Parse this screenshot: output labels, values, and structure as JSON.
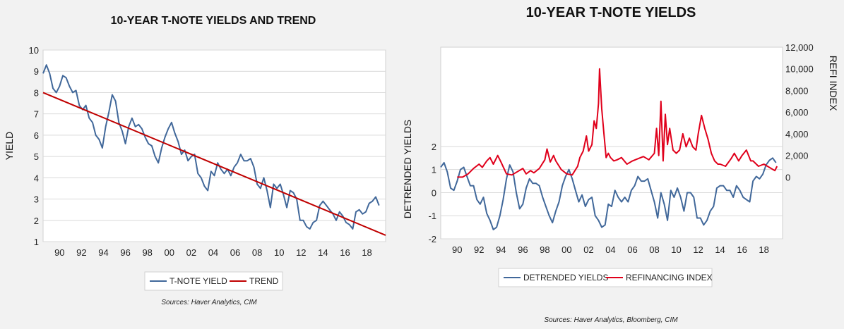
{
  "colors": {
    "tnote": "#41689a",
    "trend": "#c00000",
    "detrended": "#41689a",
    "refi": "#e0001b",
    "grid": "#d9d9d9",
    "plot_bg": "#ffffff",
    "page_bg": "#f2f2f2"
  },
  "chart_data": [
    {
      "type": "line",
      "title": "10-YEAR T-NOTE YIELDS AND TREND",
      "xlabel": "",
      "ylabel": "YIELD",
      "xlim": [
        1988.5,
        2019.7
      ],
      "ylim": [
        1,
        10
      ],
      "x_tick_labels": [
        "90",
        "92",
        "94",
        "96",
        "98",
        "00",
        "02",
        "04",
        "06",
        "08",
        "10",
        "12",
        "14",
        "16",
        "18"
      ],
      "y_tick_labels": [
        "1",
        "2",
        "3",
        "4",
        "5",
        "6",
        "7",
        "8",
        "9",
        "10"
      ],
      "legend": [
        "T-NOTE YIELD",
        "TREND"
      ],
      "legend_position": "bottom",
      "source": "Sources:  Haver Analytics, CIM",
      "series": [
        {
          "name": "T-NOTE YIELD",
          "x": [
            1988.5,
            1988.8,
            1989.1,
            1989.4,
            1989.7,
            1990.0,
            1990.3,
            1990.6,
            1990.9,
            1991.2,
            1991.5,
            1991.8,
            1992.1,
            1992.4,
            1992.7,
            1993.0,
            1993.3,
            1993.6,
            1993.9,
            1994.2,
            1994.5,
            1994.8,
            1995.1,
            1995.4,
            1995.7,
            1996.0,
            1996.3,
            1996.6,
            1996.9,
            1997.2,
            1997.5,
            1997.8,
            1998.1,
            1998.4,
            1998.7,
            1999.0,
            1999.3,
            1999.6,
            1999.9,
            2000.2,
            2000.5,
            2000.8,
            2001.1,
            2001.4,
            2001.7,
            2002.0,
            2002.3,
            2002.6,
            2002.9,
            2003.2,
            2003.5,
            2003.8,
            2004.1,
            2004.4,
            2004.7,
            2005.0,
            2005.3,
            2005.6,
            2005.9,
            2006.2,
            2006.5,
            2006.8,
            2007.1,
            2007.4,
            2007.7,
            2008.0,
            2008.3,
            2008.6,
            2008.9,
            2009.2,
            2009.5,
            2009.8,
            2010.1,
            2010.4,
            2010.7,
            2011.0,
            2011.3,
            2011.6,
            2011.9,
            2012.2,
            2012.5,
            2012.8,
            2013.1,
            2013.4,
            2013.7,
            2014.0,
            2014.3,
            2014.6,
            2014.9,
            2015.2,
            2015.5,
            2015.8,
            2016.1,
            2016.4,
            2016.7,
            2017.0,
            2017.3,
            2017.6,
            2017.9,
            2018.2,
            2018.5,
            2018.8,
            2019.1
          ],
          "values": [
            8.9,
            9.3,
            8.9,
            8.2,
            8.0,
            8.3,
            8.8,
            8.7,
            8.3,
            8.0,
            8.1,
            7.4,
            7.2,
            7.4,
            6.8,
            6.6,
            6.0,
            5.8,
            5.4,
            6.4,
            7.1,
            7.9,
            7.6,
            6.6,
            6.2,
            5.6,
            6.4,
            6.8,
            6.4,
            6.5,
            6.3,
            5.9,
            5.6,
            5.5,
            5.0,
            4.7,
            5.4,
            5.9,
            6.3,
            6.6,
            6.1,
            5.7,
            5.1,
            5.3,
            4.8,
            5.0,
            5.1,
            4.2,
            4.0,
            3.6,
            3.4,
            4.3,
            4.1,
            4.7,
            4.4,
            4.2,
            4.4,
            4.1,
            4.5,
            4.7,
            5.1,
            4.8,
            4.8,
            4.9,
            4.5,
            3.7,
            3.5,
            4.0,
            3.4,
            2.6,
            3.7,
            3.5,
            3.7,
            3.2,
            2.6,
            3.4,
            3.3,
            3.0,
            2.0,
            2.0,
            1.7,
            1.6,
            1.9,
            2.0,
            2.7,
            2.9,
            2.7,
            2.5,
            2.3,
            2.0,
            2.4,
            2.2,
            1.9,
            1.8,
            1.6,
            2.4,
            2.5,
            2.3,
            2.4,
            2.8,
            2.9,
            3.1,
            2.7
          ]
        },
        {
          "name": "TREND",
          "x": [
            1988.5,
            2019.7
          ],
          "values": [
            8.0,
            1.3
          ]
        }
      ]
    },
    {
      "type": "line",
      "title": "10-YEAR T-NOTE YIELDS",
      "xlabel": "",
      "ylabel": "DETRENDED YIELDS",
      "y2label": "REFI INDEX",
      "xlim": [
        1988.5,
        2019.7
      ],
      "ylim": [
        -2,
        6.3
      ],
      "y2lim": [
        -5700,
        12000
      ],
      "x_tick_labels": [
        "90",
        "92",
        "94",
        "96",
        "98",
        "00",
        "02",
        "04",
        "06",
        "08",
        "10",
        "12",
        "14",
        "16",
        "18"
      ],
      "y_tick_labels": [
        "-2",
        "-1",
        "0",
        "1",
        "2"
      ],
      "y2_tick_labels": [
        "0",
        "2,000",
        "4,000",
        "6,000",
        "8,000",
        "10,000",
        "12,000"
      ],
      "legend": [
        "DETRENDED YIELDS",
        "REFINANCING INDEX"
      ],
      "legend_position": "bottom",
      "source": "Sources:  Haver Analytics, Bloomberg, CIM",
      "series": [
        {
          "name": "DETRENDED YIELDS",
          "axis": "left",
          "x": [
            1988.5,
            1988.8,
            1989.1,
            1989.4,
            1989.7,
            1990.0,
            1990.3,
            1990.6,
            1990.9,
            1991.2,
            1991.5,
            1991.8,
            1992.1,
            1992.4,
            1992.7,
            1993.0,
            1993.3,
            1993.6,
            1993.9,
            1994.2,
            1994.5,
            1994.8,
            1995.1,
            1995.4,
            1995.7,
            1996.0,
            1996.3,
            1996.6,
            1996.9,
            1997.2,
            1997.5,
            1997.8,
            1998.1,
            1998.4,
            1998.7,
            1999.0,
            1999.3,
            1999.6,
            1999.9,
            2000.2,
            2000.5,
            2000.8,
            2001.1,
            2001.4,
            2001.7,
            2002.0,
            2002.3,
            2002.6,
            2002.9,
            2003.2,
            2003.5,
            2003.8,
            2004.1,
            2004.4,
            2004.7,
            2005.0,
            2005.3,
            2005.6,
            2005.9,
            2006.2,
            2006.5,
            2006.8,
            2007.1,
            2007.4,
            2007.7,
            2008.0,
            2008.3,
            2008.6,
            2008.9,
            2009.2,
            2009.5,
            2009.8,
            2010.1,
            2010.4,
            2010.7,
            2011.0,
            2011.3,
            2011.6,
            2011.9,
            2012.2,
            2012.5,
            2012.8,
            2013.1,
            2013.4,
            2013.7,
            2014.0,
            2014.3,
            2014.6,
            2014.9,
            2015.2,
            2015.5,
            2015.8,
            2016.1,
            2016.4,
            2016.7,
            2017.0,
            2017.3,
            2017.6,
            2017.9,
            2018.2,
            2018.5,
            2018.8,
            2019.1
          ],
          "values": [
            1.1,
            1.3,
            0.9,
            0.2,
            0.1,
            0.5,
            1.0,
            1.1,
            0.7,
            0.3,
            0.3,
            -0.3,
            -0.5,
            -0.2,
            -0.9,
            -1.2,
            -1.6,
            -1.5,
            -1.0,
            -0.3,
            0.6,
            1.2,
            0.9,
            0.0,
            -0.7,
            -0.5,
            0.2,
            0.6,
            0.4,
            0.4,
            0.3,
            -0.2,
            -0.6,
            -1.0,
            -1.3,
            -0.8,
            -0.4,
            0.3,
            0.7,
            1.0,
            0.6,
            0.1,
            -0.4,
            -0.1,
            -0.6,
            -0.3,
            -0.2,
            -1.0,
            -1.2,
            -1.5,
            -1.4,
            -0.5,
            -0.6,
            0.1,
            -0.2,
            -0.4,
            -0.2,
            -0.4,
            0.1,
            0.3,
            0.7,
            0.5,
            0.5,
            0.6,
            0.1,
            -0.4,
            -1.1,
            0.0,
            -0.5,
            -1.2,
            0.1,
            -0.2,
            0.2,
            -0.2,
            -0.8,
            0.0,
            0.0,
            -0.2,
            -1.1,
            -1.1,
            -1.4,
            -1.2,
            -0.8,
            -0.6,
            0.2,
            0.3,
            0.3,
            0.1,
            0.1,
            -0.2,
            0.3,
            0.1,
            -0.2,
            -0.3,
            -0.4,
            0.5,
            0.7,
            0.6,
            0.8,
            1.2,
            1.4,
            1.5,
            1.3
          ]
        },
        {
          "name": "REFINANCING INDEX",
          "axis": "right",
          "x": [
            1990.0,
            1990.5,
            1991.0,
            1991.5,
            1992.0,
            1992.3,
            1992.7,
            1993.0,
            1993.3,
            1993.7,
            1994.0,
            1994.5,
            1995.0,
            1995.5,
            1996.0,
            1996.3,
            1996.7,
            1997.0,
            1997.5,
            1998.0,
            1998.2,
            1998.5,
            1998.8,
            1999.0,
            1999.5,
            2000.0,
            2000.5,
            2001.0,
            2001.2,
            2001.5,
            2001.8,
            2002.0,
            2002.3,
            2002.5,
            2002.7,
            2002.9,
            2003.0,
            2003.2,
            2003.4,
            2003.6,
            2003.8,
            2004.0,
            2004.3,
            2004.6,
            2005.0,
            2005.5,
            2006.0,
            2006.5,
            2007.0,
            2007.5,
            2008.0,
            2008.2,
            2008.4,
            2008.6,
            2008.8,
            2009.0,
            2009.2,
            2009.4,
            2009.7,
            2010.0,
            2010.3,
            2010.6,
            2010.9,
            2011.2,
            2011.5,
            2011.8,
            2012.0,
            2012.3,
            2012.6,
            2012.9,
            2013.2,
            2013.5,
            2013.8,
            2014.0,
            2014.5,
            2015.0,
            2015.3,
            2015.7,
            2016.0,
            2016.4,
            2016.8,
            2017.0,
            2017.5,
            2018.0,
            2018.5,
            2019.0,
            2019.2
          ],
          "values": [
            0,
            0,
            300,
            800,
            1200,
            900,
            1500,
            1800,
            1200,
            2000,
            1400,
            300,
            200,
            500,
            800,
            300,
            600,
            400,
            800,
            1600,
            2600,
            1400,
            2000,
            1500,
            700,
            300,
            200,
            1000,
            1800,
            2400,
            3800,
            2400,
            3000,
            5200,
            4500,
            6800,
            10000,
            6300,
            4000,
            1800,
            2200,
            1800,
            1500,
            1600,
            1800,
            1200,
            1500,
            1700,
            1900,
            1600,
            2200,
            4500,
            2000,
            7000,
            1500,
            5800,
            3000,
            4500,
            2500,
            2200,
            2500,
            4000,
            2800,
            3600,
            2800,
            2500,
            4000,
            5700,
            4500,
            3500,
            2200,
            1500,
            1200,
            1200,
            1000,
            1700,
            2200,
            1500,
            2000,
            2500,
            1500,
            1500,
            1000,
            1200,
            900,
            600,
            1000
          ]
        }
      ]
    }
  ]
}
